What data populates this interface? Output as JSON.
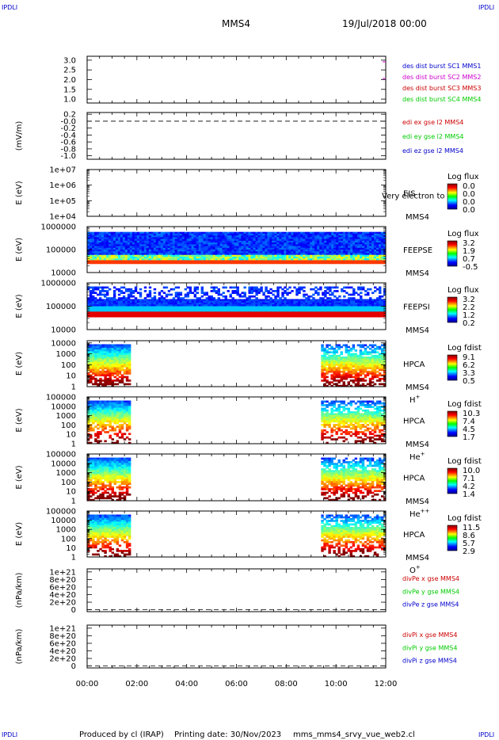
{
  "corner_label": "IPDLI",
  "header": {
    "mission": "MMS4",
    "date": "19/Jul/2018 00:00"
  },
  "footer": {
    "produced_by": "Produced by cl (IRAP)",
    "printing_date": "Printing date: 30/Nov/2023",
    "script_name": "mms_mms4_srvy_vue_web2.cl"
  },
  "time_axis": {
    "start": "00:00",
    "end": "12:00",
    "ticks": [
      "00:00",
      "02:00",
      "04:00",
      "06:00",
      "08:00",
      "10:00",
      "12:00"
    ]
  },
  "colors": {
    "blue": "#0000cc",
    "magenta": "#cc00cc",
    "red": "#cc0000",
    "green": "#00cc00",
    "dashed": "#000000"
  },
  "chart_data": [
    {
      "id": "p1",
      "type": "line",
      "title": "",
      "xlabel": "",
      "ylabel": "",
      "ylim": [
        0.8,
        3.2
      ],
      "yticks": [
        "3.0",
        "2.5",
        "2.0",
        "1.5",
        "1.0"
      ],
      "yvals": [
        3.0,
        2.5,
        2.0,
        1.5,
        1.0
      ],
      "legend": [
        {
          "text": "des dist burst SC1 MMS1",
          "color": "#0000cc"
        },
        {
          "text": "des dist burst SC2 MMS2",
          "color": "#cc00cc"
        },
        {
          "text": "des dist burst SC3 MMS3",
          "color": "#cc0000"
        },
        {
          "text": "des dist burst SC4 MMS4",
          "color": "#00cc00"
        }
      ],
      "series": []
    },
    {
      "id": "p2",
      "type": "line",
      "title": "",
      "xlabel": "",
      "ylabel": "(mV/m)",
      "ylim": [
        -1.1,
        0.25
      ],
      "yticks": [
        "0.2",
        "-0.0",
        "-0.2",
        "-0.4",
        "-0.6",
        "-0.8",
        "-1.0"
      ],
      "yvals": [
        0.2,
        0.0,
        -0.2,
        -0.4,
        -0.6,
        -0.8,
        -1.0
      ],
      "dashed_zero": true,
      "legend": [
        {
          "text": "edi ex gse l2 MMS4",
          "color": "#cc0000"
        },
        {
          "text": "edi ey gse l2 MMS4",
          "color": "#00cc00"
        },
        {
          "text": "edi ez gse l2 MMS4",
          "color": "#0000cc"
        }
      ],
      "series": []
    },
    {
      "id": "p3",
      "type": "heatmap",
      "title": "",
      "xlabel": "",
      "ylabel": "E (eV)",
      "ylog": [
        4,
        7
      ],
      "yticks": [
        "1e+07",
        "1e+06",
        "1e+05",
        "1e+04"
      ],
      "yvals": [
        7,
        6,
        5,
        4
      ],
      "instrument": "EIS",
      "overlay_text": "Very electron to",
      "spacecraft": "MMS4",
      "species": "",
      "colorbar": {
        "title": "Log flux",
        "ticks": [
          "0.0",
          "0.0",
          "0.0",
          "0.0"
        ]
      },
      "coverage": []
    },
    {
      "id": "p4",
      "type": "heatmap",
      "title": "",
      "xlabel": "",
      "ylabel": "E (eV)",
      "ylog": [
        4,
        6
      ],
      "yticks": [
        "1000000",
        "100000",
        "10000"
      ],
      "yvals": [
        6,
        5,
        4
      ],
      "instrument": "FEEPSE",
      "overlay_text": "",
      "spacecraft": "MMS4",
      "species": "",
      "colorbar": {
        "title": "Log flux",
        "ticks": [
          "3.2",
          "1.9",
          "0.7",
          "-0.5"
        ]
      },
      "coverage": [
        [
          0,
          12
        ]
      ]
    },
    {
      "id": "p5",
      "type": "heatmap",
      "title": "",
      "xlabel": "",
      "ylabel": "E (eV)",
      "ylog": [
        4,
        6
      ],
      "yticks": [
        "1000000",
        "100000",
        "10000"
      ],
      "yvals": [
        6,
        5,
        4
      ],
      "instrument": "FEEPSI",
      "overlay_text": "",
      "spacecraft": "MMS4",
      "species": "",
      "colorbar": {
        "title": "Log flux",
        "ticks": [
          "3.2",
          "2.2",
          "1.2",
          "0.2"
        ]
      },
      "coverage": [
        [
          0,
          12
        ]
      ]
    },
    {
      "id": "p6",
      "type": "heatmap",
      "title": "",
      "xlabel": "",
      "ylabel": "E (eV)",
      "ylog": [
        0,
        4.2
      ],
      "yticks": [
        "10000",
        "1000",
        "100",
        "10",
        "1"
      ],
      "yvals": [
        4,
        3,
        2,
        1,
        0
      ],
      "instrument": "HPCA",
      "overlay_text": "",
      "spacecraft": "MMS4",
      "species": "H",
      "species_sup": "+",
      "colorbar": {
        "title": "Log fdist",
        "ticks": [
          "9.1",
          "6.2",
          "3.3",
          "0.5"
        ]
      },
      "coverage": [
        [
          0,
          1.75
        ],
        [
          9.4,
          12
        ]
      ]
    },
    {
      "id": "p7",
      "type": "heatmap",
      "title": "",
      "xlabel": "",
      "ylabel": "E (eV)",
      "ylog": [
        0,
        5
      ],
      "yticks": [
        "100000",
        "10000",
        "1000",
        "100",
        "10",
        "1"
      ],
      "yvals": [
        5,
        4,
        3,
        2,
        1,
        0
      ],
      "instrument": "HPCA",
      "overlay_text": "",
      "spacecraft": "MMS4",
      "species": "He",
      "species_sup": "+",
      "colorbar": {
        "title": "Log fdist",
        "ticks": [
          "10.3",
          "7.4",
          "4.5",
          "1.7"
        ]
      },
      "coverage": [
        [
          0,
          1.75
        ],
        [
          9.4,
          12
        ]
      ]
    },
    {
      "id": "p8",
      "type": "heatmap",
      "title": "",
      "xlabel": "",
      "ylabel": "E (eV)",
      "ylog": [
        0,
        5
      ],
      "yticks": [
        "100000",
        "10000",
        "1000",
        "100",
        "10",
        "1"
      ],
      "yvals": [
        5,
        4,
        3,
        2,
        1,
        0
      ],
      "instrument": "HPCA",
      "overlay_text": "",
      "spacecraft": "MMS4",
      "species": "He",
      "species_sup": "++",
      "colorbar": {
        "title": "Log fdist",
        "ticks": [
          "10.0",
          "7.1",
          "4.2",
          "1.4"
        ]
      },
      "coverage": [
        [
          0,
          1.75
        ],
        [
          9.4,
          12
        ]
      ]
    },
    {
      "id": "p9",
      "type": "heatmap",
      "title": "",
      "xlabel": "",
      "ylabel": "E (eV)",
      "ylog": [
        0,
        5
      ],
      "yticks": [
        "100000",
        "10000",
        "1000",
        "100",
        "10",
        "1"
      ],
      "yvals": [
        5,
        4,
        3,
        2,
        1,
        0
      ],
      "instrument": "HPCA",
      "overlay_text": "",
      "spacecraft": "MMS4",
      "species": "O",
      "species_sup": "+",
      "colorbar": {
        "title": "Log fdist",
        "ticks": [
          "11.5",
          "8.6",
          "5.7",
          "2.9"
        ]
      },
      "coverage": [
        [
          0,
          1.75
        ],
        [
          9.4,
          12
        ]
      ]
    },
    {
      "id": "p10",
      "type": "line",
      "title": "",
      "xlabel": "",
      "ylabel": "(nPa/km)",
      "ylim": [
        -5e+19,
        1.08e+21
      ],
      "yticks": [
        "1e+21",
        "8e+20",
        "6e+20",
        "4e+20",
        "2e+20",
        "0"
      ],
      "yvals": [
        1e+21,
        8e+20,
        6e+20,
        4e+20,
        2e+20,
        0
      ],
      "dashed_zero": true,
      "legend": [
        {
          "text": "divPe x gse MMS4",
          "color": "#cc0000"
        },
        {
          "text": "divPe y gse MMS4",
          "color": "#00cc00"
        },
        {
          "text": "divPe z gse MMS4",
          "color": "#0000cc"
        }
      ],
      "series": []
    },
    {
      "id": "p11",
      "type": "line",
      "title": "",
      "xlabel": "",
      "ylabel": "(nPa/km)",
      "ylim": [
        -5e+19,
        1.08e+21
      ],
      "yticks": [
        "1e+21",
        "8e+20",
        "6e+20",
        "4e+20",
        "2e+20",
        "0"
      ],
      "yvals": [
        1e+21,
        8e+20,
        6e+20,
        4e+20,
        2e+20,
        0
      ],
      "dashed_zero": true,
      "legend": [
        {
          "text": "divPi x gse MMS4",
          "color": "#cc0000"
        },
        {
          "text": "divPi y gse MMS4",
          "color": "#00cc00"
        },
        {
          "text": "divPi z gse MMS4",
          "color": "#0000cc"
        }
      ],
      "series": []
    }
  ]
}
